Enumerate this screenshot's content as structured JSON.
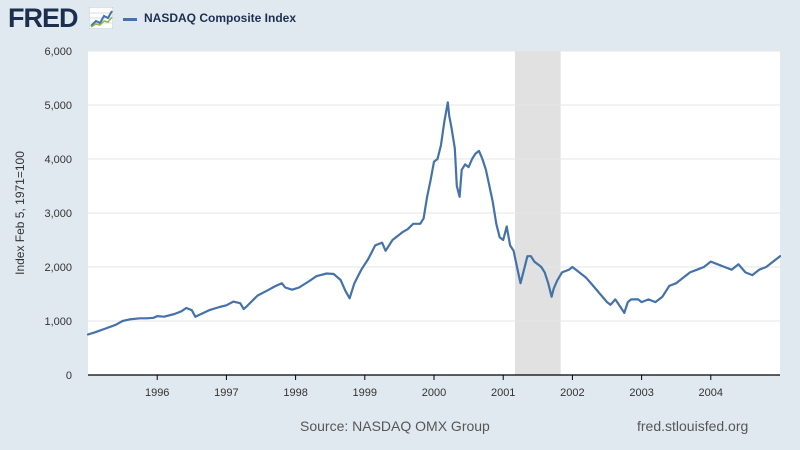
{
  "header": {
    "logo_text": "FRED",
    "series_name": "NASDAQ Composite Index"
  },
  "footer": {
    "source": "Source: NASDAQ OMX Group",
    "site": "fred.stlouisfed.org"
  },
  "colors": {
    "series": "#4572a7",
    "recession": "#e1e1e1",
    "background": "#e1e9f0",
    "plot_background": "#ffffff",
    "logo": "#1c2f4f"
  },
  "chart_data": {
    "type": "line",
    "title": "NASDAQ Composite Index",
    "xlabel": "",
    "ylabel": "Index Feb 5, 1971=100",
    "xlim": [
      1995.0,
      2005.0
    ],
    "ylim": [
      0,
      6000
    ],
    "y_ticks": [
      {
        "value": 0,
        "label": "0"
      },
      {
        "value": 1000,
        "label": "1,000"
      },
      {
        "value": 2000,
        "label": "2,000"
      },
      {
        "value": 3000,
        "label": "3,000"
      },
      {
        "value": 4000,
        "label": "4,000"
      },
      {
        "value": 5000,
        "label": "5,000"
      },
      {
        "value": 6000,
        "label": "6,000"
      }
    ],
    "x_ticks": [
      {
        "value": 1996,
        "label": "1996"
      },
      {
        "value": 1997,
        "label": "1997"
      },
      {
        "value": 1998,
        "label": "1998"
      },
      {
        "value": 1999,
        "label": "1999"
      },
      {
        "value": 2000,
        "label": "2000"
      },
      {
        "value": 2001,
        "label": "2001"
      },
      {
        "value": 2002,
        "label": "2002"
      },
      {
        "value": 2003,
        "label": "2003"
      },
      {
        "value": 2004,
        "label": "2004"
      }
    ],
    "grid": true,
    "recessions": [
      {
        "start": 2001.17,
        "end": 2001.83
      }
    ],
    "series": [
      {
        "name": "NASDAQ Composite Index",
        "x": [
          1995.0,
          1995.1,
          1995.25,
          1995.4,
          1995.5,
          1995.6,
          1995.75,
          1995.85,
          1995.95,
          1996.0,
          1996.1,
          1996.25,
          1996.35,
          1996.42,
          1996.5,
          1996.55,
          1996.62,
          1996.75,
          1996.9,
          1997.0,
          1997.1,
          1997.2,
          1997.25,
          1997.3,
          1997.45,
          1997.6,
          1997.7,
          1997.8,
          1997.85,
          1997.95,
          1998.05,
          1998.2,
          1998.3,
          1998.45,
          1998.55,
          1998.65,
          1998.72,
          1998.78,
          1998.85,
          1998.95,
          1999.05,
          1999.15,
          1999.25,
          1999.3,
          1999.4,
          1999.5,
          1999.55,
          1999.62,
          1999.7,
          1999.8,
          1999.85,
          1999.9,
          1999.95,
          2000.0,
          2000.05,
          2000.1,
          2000.15,
          2000.2,
          2000.22,
          2000.25,
          2000.3,
          2000.33,
          2000.37,
          2000.4,
          2000.45,
          2000.5,
          2000.55,
          2000.6,
          2000.65,
          2000.7,
          2000.75,
          2000.8,
          2000.85,
          2000.9,
          2000.95,
          2001.0,
          2001.05,
          2001.1,
          2001.15,
          2001.2,
          2001.25,
          2001.3,
          2001.35,
          2001.4,
          2001.45,
          2001.5,
          2001.55,
          2001.6,
          2001.65,
          2001.7,
          2001.73,
          2001.78,
          2001.85,
          2001.95,
          2002.0,
          2002.1,
          2002.2,
          2002.3,
          2002.4,
          2002.5,
          2002.55,
          2002.62,
          2002.7,
          2002.75,
          2002.8,
          2002.85,
          2002.95,
          2003.0,
          2003.1,
          2003.2,
          2003.3,
          2003.4,
          2003.5,
          2003.6,
          2003.7,
          2003.8,
          2003.9,
          2004.0,
          2004.1,
          2004.2,
          2004.3,
          2004.4,
          2004.5,
          2004.6,
          2004.7,
          2004.8,
          2004.9,
          2005.0
        ],
        "values": [
          750,
          790,
          860,
          930,
          1000,
          1030,
          1050,
          1050,
          1060,
          1090,
          1080,
          1130,
          1180,
          1240,
          1200,
          1080,
          1120,
          1200,
          1260,
          1290,
          1360,
          1330,
          1220,
          1280,
          1470,
          1570,
          1640,
          1700,
          1620,
          1580,
          1620,
          1740,
          1830,
          1880,
          1870,
          1760,
          1560,
          1420,
          1700,
          1950,
          2150,
          2400,
          2450,
          2300,
          2500,
          2600,
          2650,
          2700,
          2800,
          2800,
          2900,
          3300,
          3600,
          3950,
          4000,
          4250,
          4700,
          5050,
          4800,
          4600,
          4200,
          3500,
          3300,
          3800,
          3900,
          3850,
          4000,
          4100,
          4150,
          4000,
          3800,
          3500,
          3200,
          2800,
          2550,
          2500,
          2750,
          2400,
          2300,
          2000,
          1700,
          1950,
          2200,
          2200,
          2100,
          2050,
          2000,
          1900,
          1700,
          1450,
          1600,
          1750,
          1900,
          1950,
          2000,
          1900,
          1800,
          1650,
          1500,
          1350,
          1300,
          1400,
          1250,
          1150,
          1350,
          1400,
          1400,
          1350,
          1400,
          1350,
          1450,
          1650,
          1700,
          1800,
          1900,
          1950,
          2000,
          2100,
          2050,
          2000,
          1950,
          2050,
          1900,
          1850,
          1950,
          2000,
          2100,
          2200
        ]
      }
    ]
  }
}
